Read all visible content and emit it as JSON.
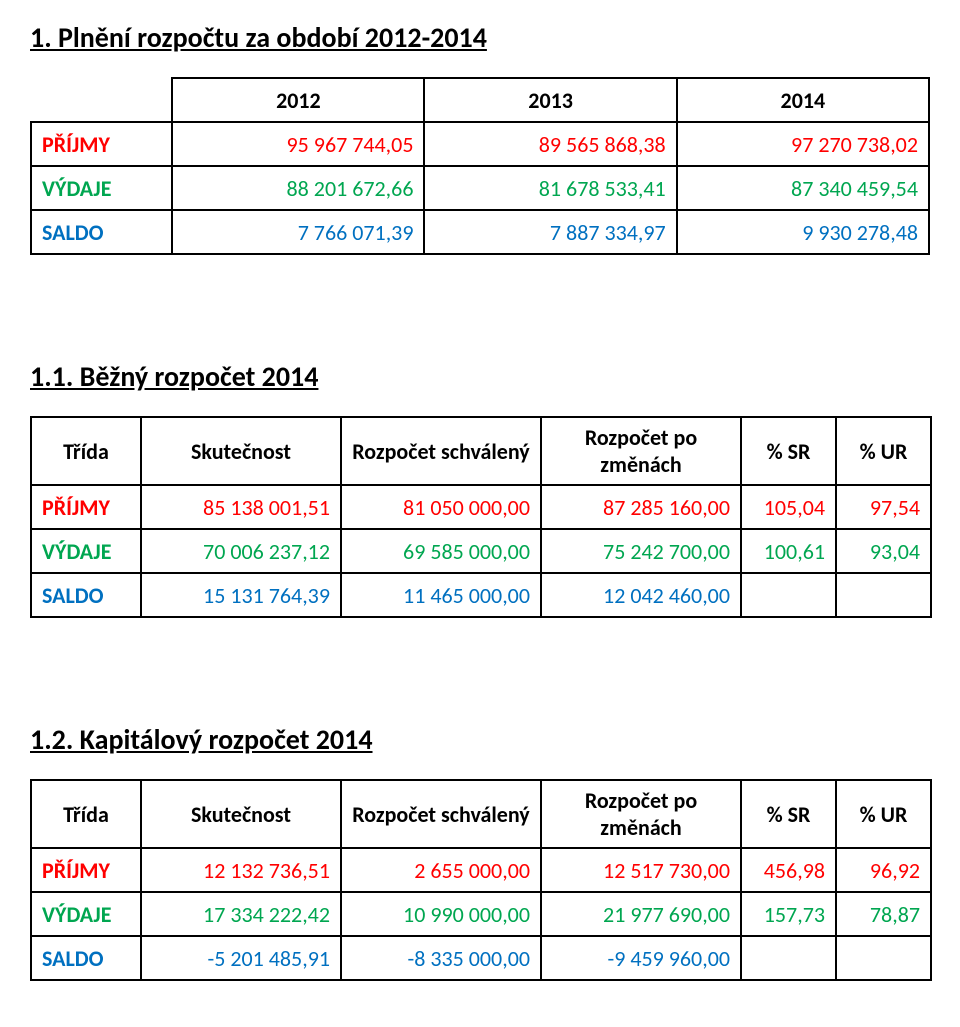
{
  "section1": {
    "title": "1. Plnění rozpočtu za období 2012-2014",
    "headers": [
      "2012",
      "2013",
      "2014"
    ],
    "rows": [
      {
        "label": "PŘÍJMY",
        "cls": "red",
        "v": [
          "95 967 744,05",
          "89 565 868,38",
          "97 270 738,02"
        ]
      },
      {
        "label": "VÝDAJE",
        "cls": "green",
        "v": [
          "88 201 672,66",
          "81 678 533,41",
          "87 340 459,54"
        ]
      },
      {
        "label": "SALDO",
        "cls": "blue",
        "v": [
          "7 766 071,39",
          "7 887 334,97",
          "9 930 278,48"
        ]
      }
    ]
  },
  "section2": {
    "title": "1.1. Běžný rozpočet 2014",
    "headers": [
      "Třída",
      "Skutečnost",
      "Rozpočet schválený",
      "Rozpočet po změnách",
      "% SR",
      "% UR"
    ],
    "rows": [
      {
        "label": "PŘÍJMY",
        "cls": "red",
        "v": [
          "85 138 001,51",
          "81 050 000,00",
          "87 285 160,00",
          "105,04",
          "97,54"
        ]
      },
      {
        "label": "VÝDAJE",
        "cls": "green",
        "v": [
          "70 006 237,12",
          "69 585 000,00",
          "75 242 700,00",
          "100,61",
          "93,04"
        ]
      },
      {
        "label": "SALDO",
        "cls": "blue",
        "v": [
          "15 131 764,39",
          "11 465 000,00",
          "12 042 460,00",
          "",
          ""
        ]
      }
    ]
  },
  "section3": {
    "title": "1.2. Kapitálový rozpočet 2014",
    "headers": [
      "Třída",
      "Skutečnost",
      "Rozpočet schválený",
      "Rozpočet po změnách",
      "% SR",
      "% UR"
    ],
    "rows": [
      {
        "label": "PŘÍJMY",
        "cls": "red",
        "v": [
          "12 132 736,51",
          "2 655 000,00",
          "12 517 730,00",
          "456,98",
          "96,92"
        ]
      },
      {
        "label": "VÝDAJE",
        "cls": "green",
        "v": [
          "17 334 222,42",
          "10 990 000,00",
          "21 977 690,00",
          "157,73",
          "78,87"
        ]
      },
      {
        "label": "SALDO",
        "cls": "blue",
        "v": [
          "-5 201 485,91",
          "-8 335 000,00",
          "-9 459 960,00",
          "",
          ""
        ]
      }
    ]
  }
}
